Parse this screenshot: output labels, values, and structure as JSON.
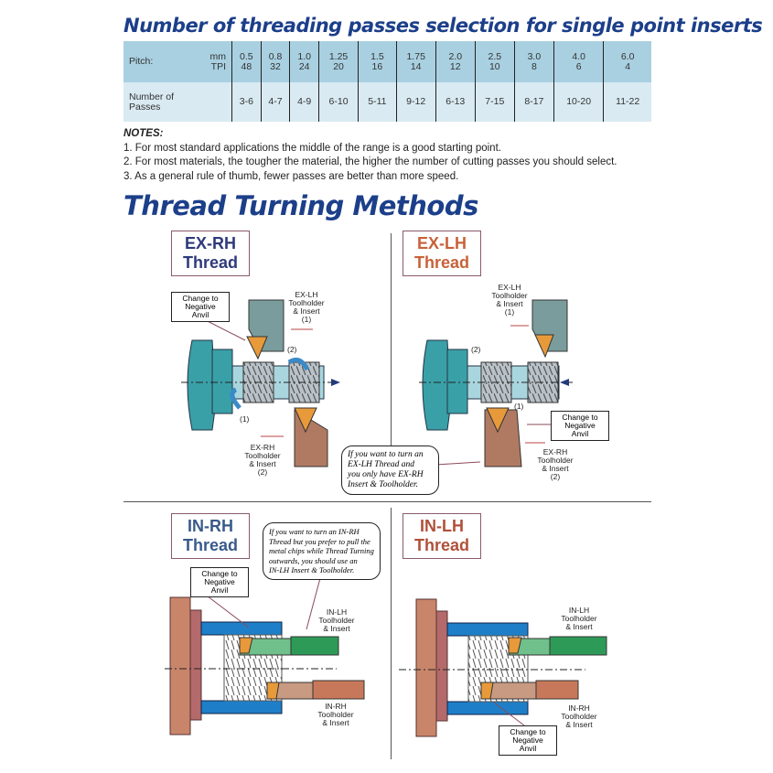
{
  "title": "Number of threading passes selection for single point inserts",
  "table": {
    "row1_label": "Pitch:",
    "unit_mm": "mm",
    "unit_tpi": "TPI",
    "pitch": [
      {
        "mm": "0.5",
        "tpi": "48"
      },
      {
        "mm": "0.8",
        "tpi": "32"
      },
      {
        "mm": "1.0",
        "tpi": "24"
      },
      {
        "mm": "1.25",
        "tpi": "20"
      },
      {
        "mm": "1.5",
        "tpi": "16"
      },
      {
        "mm": "1.75",
        "tpi": "14"
      },
      {
        "mm": "2.0",
        "tpi": "12"
      },
      {
        "mm": "2.5",
        "tpi": "10"
      },
      {
        "mm": "3.0",
        "tpi": "8"
      },
      {
        "mm": "4.0",
        "tpi": "6"
      },
      {
        "mm": "6.0",
        "tpi": "4"
      }
    ],
    "row2_label_1": "Number of",
    "row2_label_2": "Passes",
    "passes": [
      "3-6",
      "4-7",
      "4-9",
      "6-10",
      "5-11",
      "9-12",
      "6-13",
      "7-15",
      "8-17",
      "10-20",
      "11-22"
    ]
  },
  "notes": {
    "heading": "NOTES:",
    "items": [
      "1. For most standard applications the middle of the  range is a good starting point.",
      "2. For most materials, the tougher the material, the higher the number of cutting  passes you should select.",
      "3. As a general rule of thumb, fewer passes are better than more speed."
    ]
  },
  "section_title": "Thread Turning Methods",
  "panels": {
    "ex_rh": {
      "t1": "EX-RH",
      "t2": "Thread",
      "anvil": [
        "Change to",
        "Negative",
        "Anvil"
      ],
      "lh_label": [
        "EX-LH",
        "Toolholder",
        "& Insert",
        "(1)"
      ],
      "rh_label": [
        "EX-RH",
        "Toolholder",
        "& Insert",
        "(2)"
      ],
      "n1": "(1)",
      "n2": "(2)"
    },
    "ex_lh": {
      "t1": "EX-LH",
      "t2": "Thread",
      "lh_label": [
        "EX-LH",
        "Toolholder",
        "& Insert",
        "(1)"
      ],
      "anvil": [
        "Change to",
        "Negative",
        "Anvil"
      ],
      "rh_label": [
        "EX-RH",
        "Toolholder",
        "& Insert",
        "(2)"
      ],
      "n1": "(1)",
      "n2": "(2)",
      "bubble": [
        "If you want to turn an",
        "EX-LH Thread and",
        "you only have EX-RH",
        "Insert & Toolholder."
      ]
    },
    "in_rh": {
      "t1": "IN-RH",
      "t2": "Thread",
      "anvil": [
        "Change to",
        "Negative",
        "Anvil"
      ],
      "lh_label": [
        "IN-LH",
        "Toolholder",
        "& Insert"
      ],
      "rh_label": [
        "IN-RH",
        "Toolholder",
        "& Insert"
      ],
      "bubble": [
        "If you want to turn an IN-RH",
        "Thread but you prefer to pull the",
        "metal chips while Thread Turning",
        "outwards, you should use an",
        "IN-LH  Insert & Toolholder."
      ]
    },
    "in_lh": {
      "t1": "IN-LH",
      "t2": "Thread",
      "lh_label": [
        "IN-LH",
        "Toolholder",
        "& Insert"
      ],
      "rh_label": [
        "IN-RH",
        "Toolholder",
        "& Insert"
      ],
      "anvil": [
        "Change to",
        "Negative",
        "Anvil"
      ]
    }
  },
  "colors": {
    "heading": "#1c3f8a",
    "table_header": "#a9d0e1",
    "table_row": "#d9eaf2",
    "rh_title": "#2e3a7a",
    "lh_title": "#c8623a",
    "workpiece": "#3aa0a8",
    "chuck": "#c06a5a",
    "insert": "#e89a3a"
  }
}
